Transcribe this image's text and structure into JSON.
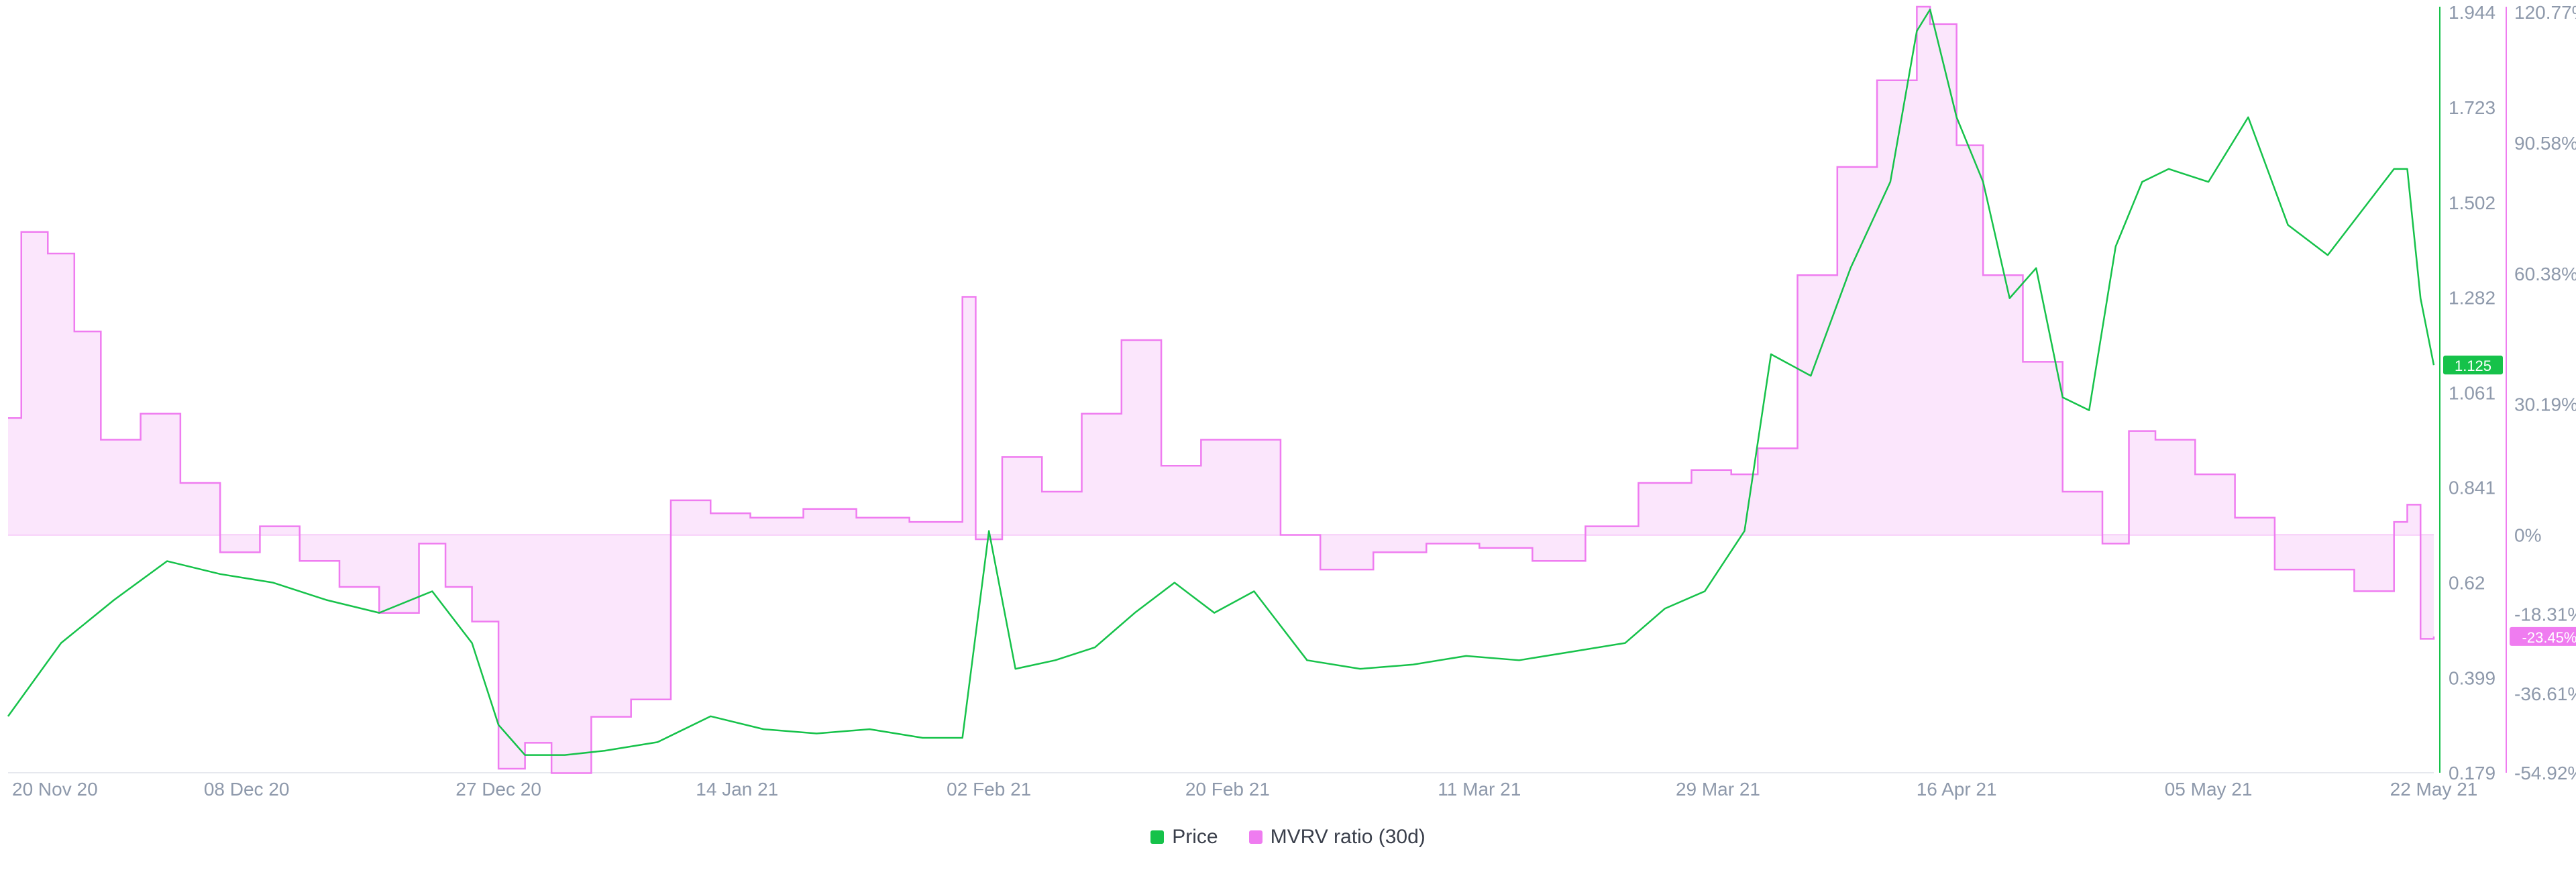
{
  "chart_data": {
    "type": "line",
    "x_dates": [
      "20 Nov 20",
      "08 Dec 20",
      "27 Dec 20",
      "14 Jan 21",
      "02 Feb 21",
      "20 Feb 21",
      "11 Mar 21",
      "29 Mar 21",
      "16 Apr 21",
      "05 May 21",
      "22 May 21"
    ],
    "y_left_axis": {
      "name": "Price",
      "ticks": [
        "1.944",
        "1.723",
        "1.502",
        "1.282",
        "1.061",
        "0.841",
        "0.62",
        "0.399",
        "0.179"
      ],
      "range": [
        0.179,
        1.944
      ]
    },
    "y_right_axis": {
      "name": "MVRV ratio (30d)",
      "ticks": [
        "120.77%",
        "90.58%",
        "60.38%",
        "30.19%",
        "0%",
        "-18.31%",
        "-36.61%",
        "-54.92%"
      ],
      "range": [
        -54.92,
        120.77
      ]
    },
    "series": [
      {
        "name": "Price",
        "color": "#16c24a",
        "last_value_label": "1.125",
        "x": [
          "2020-11-20",
          "2020-11-24",
          "2020-11-28",
          "2020-12-02",
          "2020-12-06",
          "2020-12-10",
          "2020-12-14",
          "2020-12-18",
          "2020-12-22",
          "2020-12-25",
          "2020-12-27",
          "2020-12-29",
          "2021-01-01",
          "2021-01-04",
          "2021-01-08",
          "2021-01-12",
          "2021-01-16",
          "2021-01-20",
          "2021-01-24",
          "2021-01-28",
          "2021-01-31",
          "2021-02-02",
          "2021-02-04",
          "2021-02-07",
          "2021-02-10",
          "2021-02-13",
          "2021-02-16",
          "2021-02-19",
          "2021-02-22",
          "2021-02-26",
          "2021-03-02",
          "2021-03-06",
          "2021-03-10",
          "2021-03-14",
          "2021-03-18",
          "2021-03-22",
          "2021-03-25",
          "2021-03-28",
          "2021-03-31",
          "2021-04-02",
          "2021-04-05",
          "2021-04-08",
          "2021-04-11",
          "2021-04-13",
          "2021-04-14",
          "2021-04-16",
          "2021-04-18",
          "2021-04-20",
          "2021-04-22",
          "2021-04-24",
          "2021-04-26",
          "2021-04-28",
          "2021-04-30",
          "2021-05-02",
          "2021-05-05",
          "2021-05-08",
          "2021-05-11",
          "2021-05-14",
          "2021-05-17",
          "2021-05-19",
          "2021-05-20",
          "2021-05-21",
          "2021-05-22"
        ],
        "values": [
          0.31,
          0.48,
          0.58,
          0.67,
          0.64,
          0.62,
          0.58,
          0.55,
          0.6,
          0.48,
          0.29,
          0.22,
          0.22,
          0.23,
          0.25,
          0.31,
          0.28,
          0.27,
          0.28,
          0.26,
          0.26,
          0.74,
          0.42,
          0.44,
          0.47,
          0.55,
          0.62,
          0.55,
          0.6,
          0.44,
          0.42,
          0.43,
          0.45,
          0.44,
          0.46,
          0.48,
          0.56,
          0.6,
          0.74,
          1.15,
          1.1,
          1.35,
          1.55,
          1.9,
          1.95,
          1.7,
          1.55,
          1.28,
          1.35,
          1.05,
          1.02,
          1.4,
          1.55,
          1.58,
          1.55,
          1.7,
          1.45,
          1.38,
          1.5,
          1.58,
          1.58,
          1.28,
          1.125
        ]
      },
      {
        "name": "MVRV ratio (30d)",
        "color": "#ef7cf0",
        "last_value_label": "-23.45%",
        "x": [
          "2020-11-20",
          "2020-11-21",
          "2020-11-23",
          "2020-11-25",
          "2020-11-27",
          "2020-11-30",
          "2020-12-03",
          "2020-12-06",
          "2020-12-09",
          "2020-12-12",
          "2020-12-15",
          "2020-12-18",
          "2020-12-21",
          "2020-12-23",
          "2020-12-25",
          "2020-12-27",
          "2020-12-29",
          "2020-12-31",
          "2021-01-03",
          "2021-01-06",
          "2021-01-09",
          "2021-01-12",
          "2021-01-15",
          "2021-01-19",
          "2021-01-23",
          "2021-01-27",
          "2021-01-31",
          "2021-02-01",
          "2021-02-03",
          "2021-02-06",
          "2021-02-09",
          "2021-02-12",
          "2021-02-15",
          "2021-02-18",
          "2021-02-21",
          "2021-02-24",
          "2021-02-27",
          "2021-03-03",
          "2021-03-07",
          "2021-03-11",
          "2021-03-15",
          "2021-03-19",
          "2021-03-23",
          "2021-03-27",
          "2021-03-30",
          "2021-04-01",
          "2021-04-04",
          "2021-04-07",
          "2021-04-10",
          "2021-04-13",
          "2021-04-14",
          "2021-04-16",
          "2021-04-18",
          "2021-04-21",
          "2021-04-24",
          "2021-04-27",
          "2021-04-29",
          "2021-05-01",
          "2021-05-04",
          "2021-05-07",
          "2021-05-10",
          "2021-05-13",
          "2021-05-16",
          "2021-05-19",
          "2021-05-20",
          "2021-05-21",
          "2021-05-22"
        ],
        "values": [
          27,
          70,
          65,
          47,
          22,
          28,
          12,
          -4,
          2,
          -6,
          -12,
          -18,
          -2,
          -12,
          -20,
          -54,
          -48,
          -55,
          -42,
          -38,
          8,
          5,
          4,
          6,
          4,
          3,
          55,
          -1,
          18,
          10,
          28,
          45,
          16,
          22,
          22,
          0,
          -8,
          -4,
          -2,
          -3,
          -6,
          2,
          12,
          15,
          14,
          20,
          60,
          85,
          105,
          122,
          118,
          90,
          60,
          40,
          10,
          -2,
          24,
          22,
          14,
          4,
          -8,
          -8,
          -13,
          3,
          7,
          -24,
          -23.45
        ]
      }
    ]
  }
}
